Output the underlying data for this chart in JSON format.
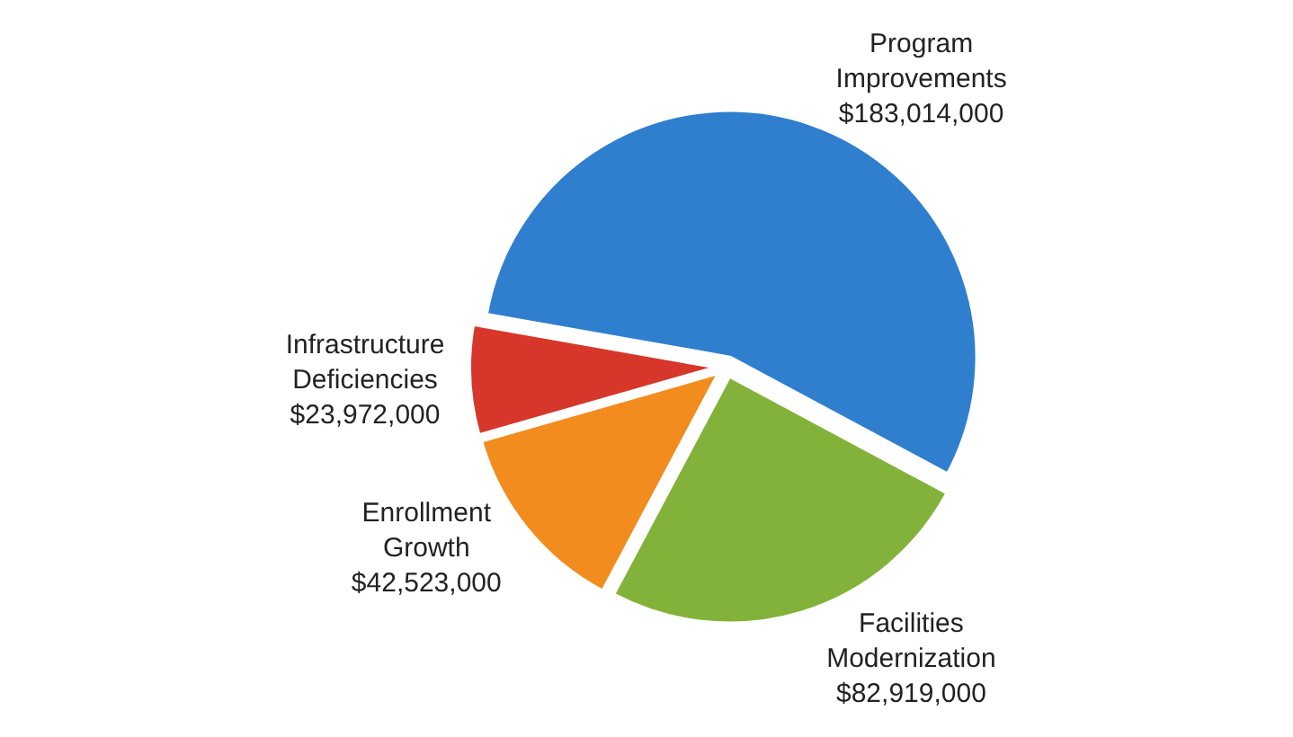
{
  "chart_data": {
    "type": "pie",
    "categories": [
      "Program Improvements",
      "Facilities Modernization",
      "Enrollment Growth",
      "Infrastructure Deficiencies"
    ],
    "values": [
      183014000,
      82919000,
      42523000,
      23972000
    ],
    "value_labels": [
      "$183,014,000",
      "$82,919,000",
      "$42,523,000",
      "$23,972,000"
    ],
    "colors": [
      "#2f7fce",
      "#82b23a",
      "#f28c1e",
      "#d6372a"
    ],
    "legend": false
  }
}
